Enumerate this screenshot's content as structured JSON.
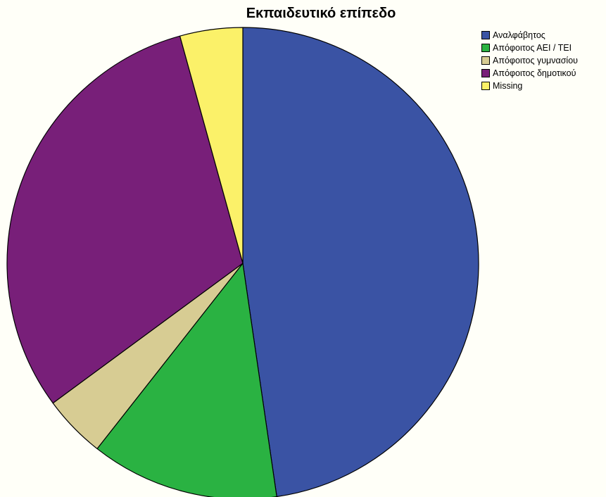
{
  "chart_data": {
    "type": "pie",
    "title": "Εκπαιδευτικό επίπεδο",
    "categories": [
      "Αναλφάβητος",
      "Απόφοιτος ΑΕΙ / ΤΕΙ",
      "Απόφοιτος γυμνασίου",
      "Απόφοιτος δημοτικού",
      "Missing"
    ],
    "values": [
      47.7,
      12.9,
      4.3,
      30.8,
      4.3
    ],
    "colors": [
      "#3a53a4",
      "#2ab242",
      "#d7cc93",
      "#781f79",
      "#fbf169"
    ],
    "legend_position": "top-right",
    "start_angle_deg": 0,
    "direction": "clockwise"
  }
}
